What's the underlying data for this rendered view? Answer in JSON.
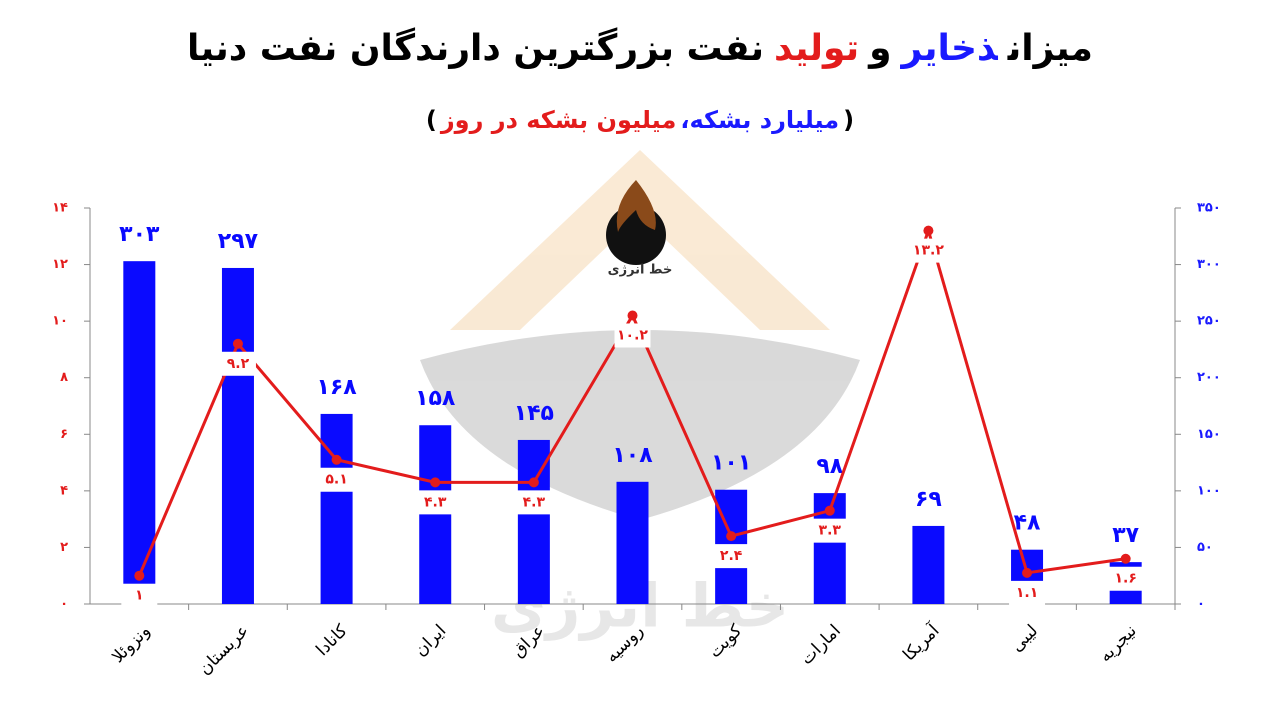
{
  "watermark": "خط انرژی",
  "chart_data": {
    "type": "bar",
    "title": [
      "میزان",
      "ذخایر",
      "و",
      "تولید",
      "نفت بزرگترین دارندگان نفت دنیا"
    ],
    "title_colors": [
      "#000000",
      "#1a1aff",
      "#000000",
      "#e31c1c",
      "#000000"
    ],
    "subtitle": [
      "(",
      "میلیارد بشکه،",
      "میلیون بشکه در روز",
      ")"
    ],
    "subtitle_colors": [
      "#000000",
      "#1a1aff",
      "#e31c1c",
      "#000000"
    ],
    "categories": [
      "ونزوئلا",
      "عربستان",
      "کانادا",
      "ایران",
      "عراق",
      "روسیه",
      "کویت",
      "امارات",
      "آمریکا",
      "لیبی",
      "نیجریه"
    ],
    "series": [
      {
        "type": "bar",
        "axis": "y2",
        "color": "#0a0aff",
        "values": [
          303,
          297,
          168,
          158,
          145,
          108,
          101,
          98,
          69,
          48,
          37
        ],
        "value_labels": [
          "۳۰۳",
          "۲۹۷",
          "۱۶۸",
          "۱۵۸",
          "۱۴۵",
          "۱۰۸",
          "۱۰۱",
          "۹۸",
          "۶۹",
          "۴۸",
          "۳۷"
        ]
      },
      {
        "type": "line",
        "axis": "y",
        "color": "#e31c1c",
        "values": [
          1,
          9.2,
          5.1,
          4.3,
          4.3,
          10.2,
          2.4,
          3.3,
          13.2,
          1.1,
          1.6
        ],
        "value_labels": [
          "۱",
          "۹.۲",
          "۵.۱",
          "۴.۳",
          "۴.۳",
          "۱۰.۲",
          "۲.۴",
          "۳.۳",
          "۱۳.۲",
          "۱.۱",
          "۱.۶"
        ]
      }
    ],
    "ylim": [
      0,
      14
    ],
    "yticks": [
      {
        "value": 0,
        "label": "۰"
      },
      {
        "value": 2,
        "label": "۲"
      },
      {
        "value": 4,
        "label": "۴"
      },
      {
        "value": 6,
        "label": "۶"
      },
      {
        "value": 8,
        "label": "۸"
      },
      {
        "value": 10,
        "label": "۱۰"
      },
      {
        "value": 12,
        "label": "۱۲"
      },
      {
        "value": 14,
        "label": "۱۴"
      }
    ],
    "y_color": "#e31c1c",
    "y2lim": [
      0,
      350
    ],
    "y2ticks": [
      {
        "value": 0,
        "label": "۰"
      },
      {
        "value": 50,
        "label": "۵۰"
      },
      {
        "value": 100,
        "label": "۱۰۰"
      },
      {
        "value": 150,
        "label": "۱۵۰"
      },
      {
        "value": 200,
        "label": "۲۰۰"
      },
      {
        "value": 250,
        "label": "۲۵۰"
      },
      {
        "value": 300,
        "label": "۳۰۰"
      },
      {
        "value": 350,
        "label": "۳۵۰"
      }
    ],
    "y2_color": "#1a1aff",
    "grid": false
  }
}
